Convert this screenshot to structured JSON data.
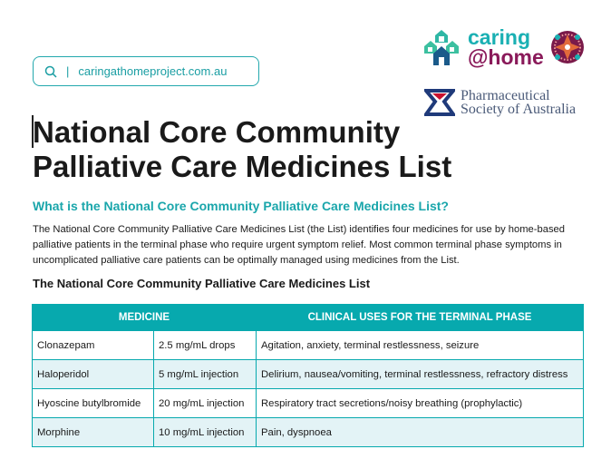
{
  "search": {
    "url": "caringathomeproject.com.au",
    "icon": "search-icon"
  },
  "logos": {
    "caring": "caring",
    "home": "@home",
    "psa_line1": "Pharmaceutical",
    "psa_line2": "Society of Australia"
  },
  "title_line1": "National Core Community",
  "title_line2": "Palliative Care Medicines List",
  "subheading": "What is the National Core Community Palliative Care Medicines List?",
  "paragraph": "The National Core Community Palliative Care Medicines List (the List) identifies four medicines for use by home-based palliative patients in the terminal phase who require urgent symptom relief. Most common terminal phase symptoms in uncomplicated palliative care patients can be optimally managed using medicines from the List.",
  "table_title": "The National Core Community Palliative Care Medicines List",
  "table": {
    "headers": [
      "MEDICINE",
      "CLINICAL USES FOR THE TERMINAL PHASE"
    ],
    "rows": [
      {
        "medicine": "Clonazepam",
        "form": "2.5 mg/mL drops",
        "uses": "Agitation, anxiety, terminal restlessness, seizure"
      },
      {
        "medicine": "Haloperidol",
        "form": "5 mg/mL injection",
        "uses": "Delirium, nausea/vomiting, terminal restlessness, refractory distress"
      },
      {
        "medicine": "Hyoscine butylbromide",
        "form": "20 mg/mL injection",
        "uses": "Respiratory tract secretions/noisy breathing (prophylactic)"
      },
      {
        "medicine": "Morphine",
        "form": "10 mg/mL injection",
        "uses": "Pain, dyspnoea"
      }
    ]
  },
  "colors": {
    "teal": "#07a9ae",
    "row_alt": "#e3f3f6",
    "magenta": "#8a1a5a",
    "psa_navy": "#1f3a7a",
    "psa_red": "#c8102e"
  }
}
